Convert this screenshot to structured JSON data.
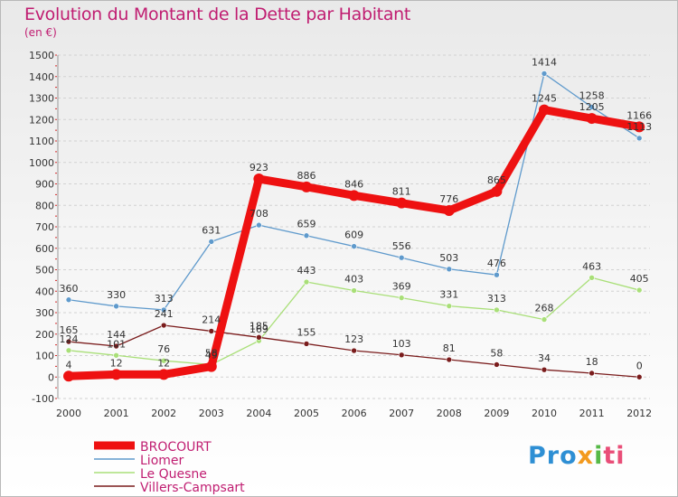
{
  "title": "Evolution du Montant de la Dette par Habitant",
  "subtitle": "(en €)",
  "logo": {
    "parts": [
      "Pro",
      "x",
      "i",
      "ti"
    ]
  },
  "chart_data": {
    "type": "line",
    "x": [
      "2000",
      "2001",
      "2002",
      "2003",
      "2004",
      "2005",
      "2006",
      "2007",
      "2008",
      "2009",
      "2010",
      "2011",
      "2012"
    ],
    "ylim": [
      -100,
      1500
    ],
    "yticks": [
      -100,
      0,
      100,
      200,
      300,
      400,
      500,
      600,
      700,
      800,
      900,
      1000,
      1100,
      1200,
      1300,
      1400,
      1500
    ],
    "grid": "horizontal dashed",
    "legend_position": "bottom-left",
    "series": [
      {
        "name": "BROCOURT",
        "color": "#ee1111",
        "values": [
          4,
          12,
          12,
          49,
          923,
          886,
          846,
          811,
          776,
          865,
          1245,
          1205,
          1166
        ],
        "labels": [
          "4",
          "12",
          "12",
          "49",
          "923",
          "886",
          "846",
          "811",
          "776",
          "865",
          "1245",
          "1205",
          "1166"
        ]
      },
      {
        "name": "Liomer",
        "color": "#5f9acc",
        "values": [
          360,
          330,
          313,
          631,
          708,
          659,
          609,
          556,
          503,
          476,
          1414,
          1258,
          1113
        ],
        "labels": [
          "360",
          "330",
          "313",
          "631",
          "708",
          "659",
          "609",
          "556",
          "503",
          "476",
          "1414",
          "1258",
          "1113"
        ]
      },
      {
        "name": "Le Quesne",
        "color": "#a9df78",
        "values": [
          124,
          101,
          76,
          58,
          169,
          443,
          403,
          369,
          331,
          313,
          268,
          463,
          405
        ],
        "labels": [
          "124",
          "101",
          "76",
          "58",
          "169",
          "443",
          "403",
          "369",
          "331",
          "313",
          "268",
          "463",
          "405"
        ]
      },
      {
        "name": "Villers-Campsart",
        "color": "#7a1c1c",
        "values": [
          165,
          144,
          241,
          214,
          185,
          155,
          123,
          103,
          81,
          58,
          34,
          18,
          0
        ],
        "labels": [
          "165",
          "144",
          "241",
          "214",
          "185",
          "155",
          "123",
          "103",
          "81",
          "58",
          "34",
          "18",
          "0"
        ]
      }
    ]
  }
}
